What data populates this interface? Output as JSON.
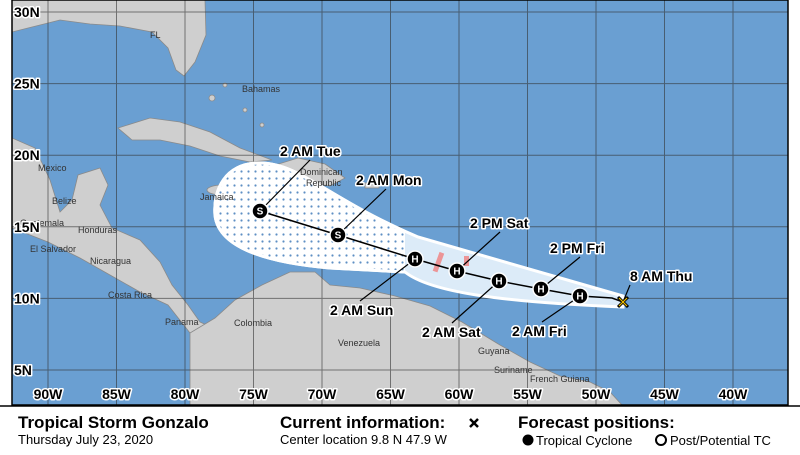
{
  "map": {
    "lat_labels": [
      "30N",
      "25N",
      "20N",
      "15N",
      "10N",
      "5N"
    ],
    "lon_labels": [
      "90W",
      "85W",
      "80W",
      "75W",
      "70W",
      "65W",
      "60W",
      "55W",
      "50W",
      "45W",
      "40W"
    ],
    "places": [
      "FL",
      "Bahamas",
      "Mexico",
      "Belize",
      "Guatemala",
      "Honduras",
      "El Salvador",
      "Nicaragua",
      "Costa Rica",
      "Panama",
      "Jamaica",
      "Dominican",
      "Republic",
      "Colombia",
      "Venezuela",
      "Guyana",
      "Suriname",
      "French Guiana"
    ],
    "forecast": [
      {
        "label": "8 AM Thu"
      },
      {
        "label": "2 AM Fri",
        "symbol": "H"
      },
      {
        "label": "2 PM Fri",
        "symbol": "H"
      },
      {
        "label": "2 AM Sat",
        "symbol": "H"
      },
      {
        "label": "2 PM Sat",
        "symbol": "H"
      },
      {
        "label": "2 AM Sun",
        "symbol": "H"
      },
      {
        "label": "2 AM Mon",
        "symbol": "S"
      },
      {
        "label": "2 AM Tue",
        "symbol": "S"
      }
    ]
  },
  "info": {
    "storm": "Tropical Storm Gonzalo",
    "date": "Thursday July 23, 2020",
    "current_title": "Current information:",
    "center": "Center location 9.8 N 47.9 W",
    "forecast_title": "Forecast positions:",
    "legend": [
      "Tropical Cyclone",
      "Post/Potential TC"
    ]
  }
}
